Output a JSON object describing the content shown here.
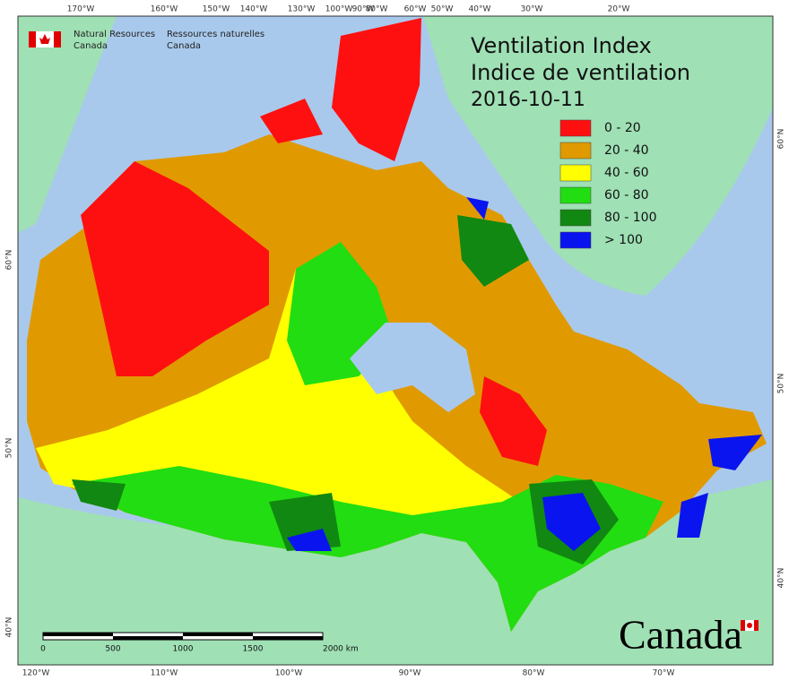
{
  "header": {
    "agency_en": [
      "Natural Resources",
      "Canada"
    ],
    "agency_fr": [
      "Ressources naturelles",
      "Canada"
    ]
  },
  "title": [
    "Ventilation Index",
    "Indice de ventilation",
    "2016-10-11"
  ],
  "legend": [
    {
      "label": "0 - 20",
      "color": "#ff1010"
    },
    {
      "label": "20 - 40",
      "color": "#e09a00"
    },
    {
      "label": "40 - 60",
      "color": "#ffff00"
    },
    {
      "label": "60 - 80",
      "color": "#22dd11"
    },
    {
      "label": "80 - 100",
      "color": "#118811"
    },
    {
      "label": "> 100",
      "color": "#0a14ee"
    }
  ],
  "graticule": {
    "top": [
      "170°W",
      "160°W",
      "150°W",
      "140°W",
      "130°W",
      "100°W",
      "90°W",
      "80°W",
      "60°W",
      "50°W",
      "40°W",
      "30°W",
      "20°W"
    ],
    "bottom": [
      "120°W",
      "110°W",
      "100°W",
      "90°W",
      "80°W",
      "70°W"
    ],
    "right": [
      "60°N",
      "50°N",
      "40°N"
    ],
    "left": [
      "60°N",
      "50°N",
      "40°N"
    ]
  },
  "scale_bar": [
    "0",
    "500",
    "1000",
    "1500",
    "2000 km"
  ],
  "wordmark": "Canada"
}
